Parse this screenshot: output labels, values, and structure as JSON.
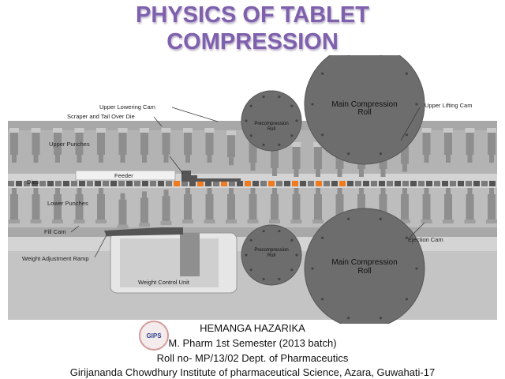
{
  "title": {
    "line1": "PHYSICS OF TABLET",
    "line2": "COMPRESSION",
    "color": "#7e60ad"
  },
  "diagram": {
    "labels": {
      "upper_lowering_cam": "Upper  Lowering Cam",
      "scraper": "Scraper and Tail Over Die",
      "upper_punches": "Upper Punches",
      "feeder": "Feeder",
      "dies": "Dies",
      "lower_punches": "Lower Punches",
      "fill_cam": "Fill Cam",
      "weight_adjustment_ramp": "Weight Adjustment Ramp",
      "weight_control_unit": "Weight Control Unit",
      "upper_lifting_cam": "Upper  Lifting Cam",
      "ejection_cam": "Ejection Cam",
      "main_compression_roll_top": [
        "Main Compression",
        "Roll"
      ],
      "precompression_roll_top": [
        "Precompression",
        "Roll"
      ],
      "precompression_roll_bottom": [
        "Precompression",
        "Roll"
      ],
      "main_compression_roll_bottom": [
        "Main Compression",
        "Roll"
      ]
    },
    "colors": {
      "granule": "#f07a1e",
      "machine": "#9a9a9a",
      "roll": "#6b6b6b"
    }
  },
  "footer": {
    "logo_text": "GIPS",
    "name": "HEMANGA HAZARIKA",
    "course": "M. Pharm 1st Semester (2013 batch)",
    "roll": "Roll no- MP/13/02 Dept. of Pharmaceutics",
    "institute": "Girijananda Chowdhury Institute of pharmaceutical Science, Azara, Guwahati-17"
  }
}
